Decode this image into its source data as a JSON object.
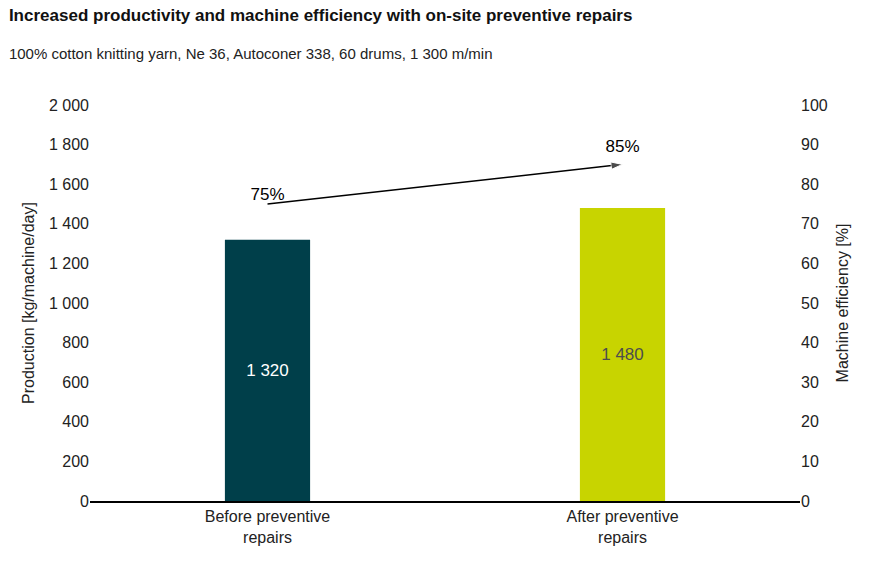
{
  "chart_data": {
    "type": "bar",
    "title": "Increased productivity and machine efficiency with on-site preventive repairs",
    "subtitle": "100% cotton knitting yarn, Ne 36, Autoconer 338, 60 drums, 1 300 m/min",
    "categories": [
      "Before preventive repairs",
      "After preventive repairs"
    ],
    "y_label": "Production [kg/machine/day]",
    "y2_label": "Machine efficiency [%]",
    "ylim": [
      0,
      2000
    ],
    "yticks": [
      0,
      200,
      400,
      600,
      800,
      {
        "value": 1000,
        "label": "1 000"
      },
      {
        "value": 1200,
        "label": "1 200"
      },
      {
        "value": 1400,
        "label": "1 400"
      },
      {
        "value": 1600,
        "label": "1 600"
      },
      {
        "value": 1800,
        "label": "1 800"
      },
      {
        "value": 2000,
        "label": "2 000"
      }
    ],
    "y2lim": [
      0,
      100
    ],
    "y2ticks": [
      0,
      10,
      20,
      30,
      40,
      50,
      60,
      70,
      80,
      90,
      100
    ],
    "grid": false,
    "series": [
      {
        "type": "bar",
        "colors": [
          "#003f4a",
          "#c8d400"
        ],
        "values": [
          1320,
          1480
        ],
        "value_labels": [
          "1 320",
          "1 480"
        ],
        "data_labels": true
      },
      {
        "type": "line",
        "axis": "y2",
        "color": "#000000",
        "marker": "arrow",
        "values": [
          75,
          85
        ],
        "value_labels": [
          "75%",
          "85%"
        ],
        "data_labels": true
      }
    ]
  }
}
